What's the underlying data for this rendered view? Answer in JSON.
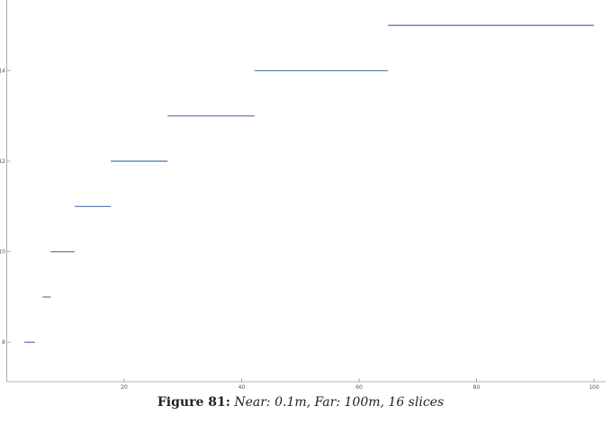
{
  "chart_data": {
    "type": "segments",
    "x_start": [
      3.0,
      6.1,
      7.5,
      11.6,
      17.7,
      27.4,
      42.2,
      64.9
    ],
    "x_end": [
      4.8,
      7.5,
      11.6,
      17.7,
      27.4,
      42.2,
      64.9,
      100
    ],
    "values": [
      8,
      9,
      10,
      11,
      12,
      13,
      14,
      15
    ],
    "color": "#5e81b5",
    "xlim": [
      0,
      102
    ],
    "xticks": [
      20,
      40,
      60,
      80,
      100
    ],
    "ylim": [
      7.13,
      15.56
    ],
    "yticks": [
      8,
      10,
      12,
      14
    ]
  },
  "caption": {
    "label": "Figure 81:",
    "text": "Near: 0.1m, Far: 100m, 16 slices"
  }
}
